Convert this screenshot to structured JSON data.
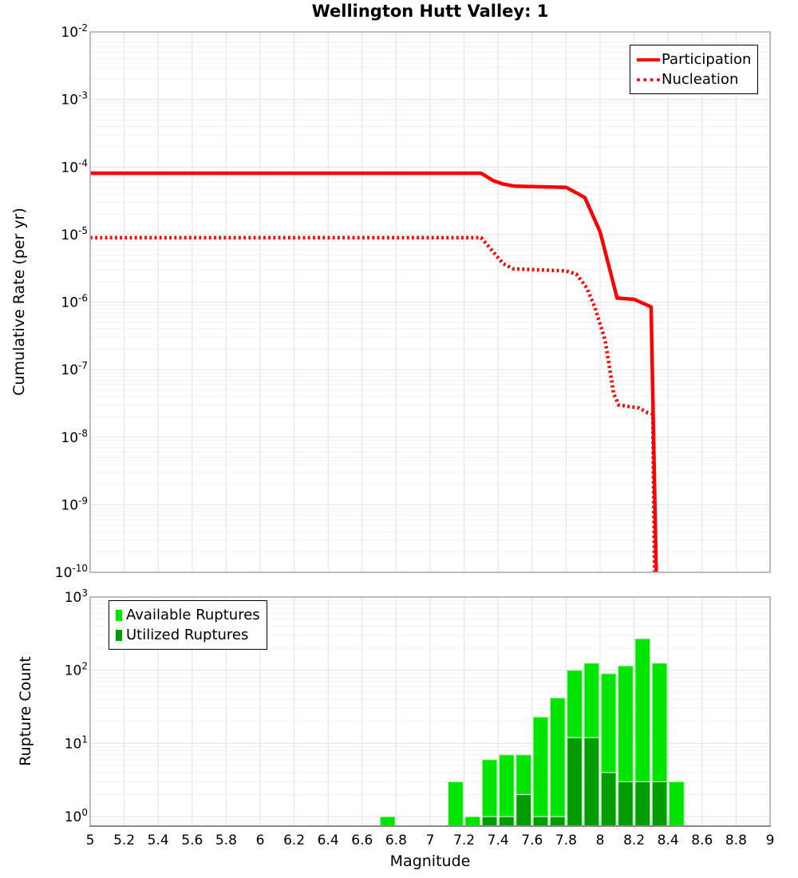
{
  "title": "Wellington Hutt Valley: 1",
  "axes": {
    "x_label": "Magnitude",
    "top_y_label": "Cumulative Rate (per yr)",
    "bottom_y_label": "Rupture Count",
    "x_tick_labels": [
      "5",
      "5.2",
      "5.4",
      "5.6",
      "5.8",
      "6",
      "6.2",
      "6.4",
      "6.6",
      "6.8",
      "7",
      "7.2",
      "7.4",
      "7.6",
      "7.8",
      "8",
      "8.2",
      "8.4",
      "8.6",
      "8.8",
      "9"
    ],
    "top_y_tick_exponents": [
      -2,
      -3,
      -4,
      -5,
      -6,
      -7,
      -8,
      -9,
      -10
    ],
    "bottom_y_tick_exponents": [
      3,
      2,
      1,
      0
    ]
  },
  "colors": {
    "line": "#ff0000",
    "available": "#00e500",
    "utilized": "#009c00",
    "bar_edge": "#c9f2c9",
    "grid_major": "#e2e2e2",
    "grid_minor": "#f1f1f1",
    "frame": "#ababab",
    "bottom_axis": "#8a8a8a",
    "legend_border": "#000000",
    "text": "#000000"
  },
  "chart_data": [
    {
      "type": "line",
      "panel": "top",
      "title": "Wellington Hutt Valley: 1",
      "xlabel": "",
      "ylabel": "Cumulative Rate (per yr)",
      "xlim": [
        5,
        9
      ],
      "ylim": [
        1e-10,
        0.01
      ],
      "ylog": true,
      "grid": true,
      "legend_position": "top-right",
      "series": [
        {
          "name": "Participation",
          "line_style": "solid",
          "color": "#ff0000",
          "points": [
            [
              5.0,
              8.1e-05
            ],
            [
              7.3,
              8.1e-05
            ],
            [
              7.37,
              6.3e-05
            ],
            [
              7.43,
              5.6e-05
            ],
            [
              7.5,
              5.2e-05
            ],
            [
              7.8,
              5e-05
            ],
            [
              7.91,
              3.55e-05
            ],
            [
              8.0,
              1.1e-05
            ],
            [
              8.1,
              1.15e-06
            ],
            [
              8.2,
              1.1e-06
            ],
            [
              8.3,
              8.5e-07
            ],
            [
              8.33,
              1e-10
            ]
          ]
        },
        {
          "name": "Nucleation",
          "line_style": "dotted",
          "color": "#ff0000",
          "points": [
            [
              5.0,
              9e-06
            ],
            [
              7.3,
              9e-06
            ],
            [
              7.37,
              5.6e-06
            ],
            [
              7.43,
              3.7e-06
            ],
            [
              7.49,
              3.1e-06
            ],
            [
              7.8,
              2.9e-06
            ],
            [
              7.86,
              2.6e-06
            ],
            [
              7.92,
              1.65e-06
            ],
            [
              7.97,
              8.3e-07
            ],
            [
              8.03,
              2.7e-07
            ],
            [
              8.08,
              4.4e-08
            ],
            [
              8.11,
              3e-08
            ],
            [
              8.23,
              2.7e-08
            ],
            [
              8.28,
              2.3e-08
            ],
            [
              8.31,
              2.2e-08
            ],
            [
              8.32,
              1e-10
            ]
          ]
        }
      ]
    },
    {
      "type": "bar",
      "panel": "bottom",
      "xlabel": "Magnitude",
      "ylabel": "Rupture Count",
      "xlim": [
        5,
        9
      ],
      "ylim": [
        0.74,
        1000
      ],
      "ylog": true,
      "grid": true,
      "bin_width": 0.1,
      "legend_position": "top-left",
      "series": [
        {
          "name": "Available Ruptures",
          "color": "#00e500",
          "bins": [
            [
              6.7,
              1
            ],
            [
              7.1,
              3
            ],
            [
              7.2,
              1
            ],
            [
              7.3,
              6
            ],
            [
              7.4,
              7
            ],
            [
              7.5,
              7
            ],
            [
              7.6,
              23
            ],
            [
              7.7,
              42
            ],
            [
              7.8,
              100
            ],
            [
              7.9,
              125
            ],
            [
              8.0,
              90
            ],
            [
              8.1,
              115
            ],
            [
              8.2,
              270
            ],
            [
              8.3,
              125
            ],
            [
              8.4,
              3
            ]
          ]
        },
        {
          "name": "Utilized Ruptures",
          "color": "#009c00",
          "bins": [
            [
              7.3,
              1
            ],
            [
              7.4,
              1
            ],
            [
              7.5,
              2
            ],
            [
              7.6,
              1
            ],
            [
              7.7,
              1
            ],
            [
              7.8,
              12
            ],
            [
              7.9,
              12
            ],
            [
              8.0,
              4
            ],
            [
              8.1,
              3
            ],
            [
              8.2,
              3
            ],
            [
              8.3,
              3
            ]
          ]
        }
      ]
    }
  ]
}
